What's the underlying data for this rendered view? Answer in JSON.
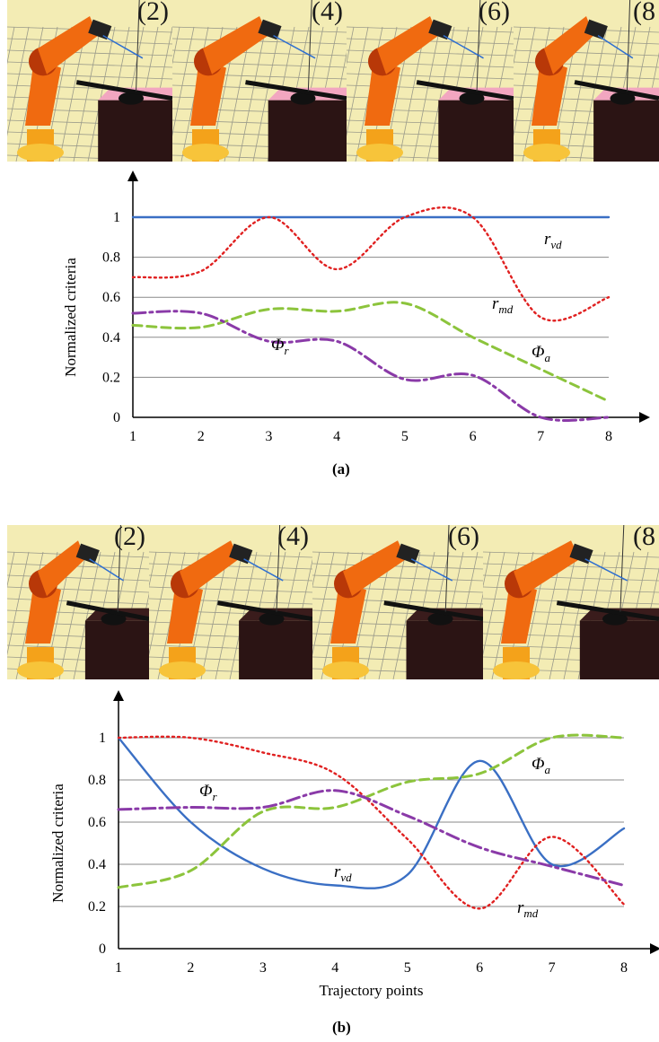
{
  "figure": {
    "panel_a_label": "(a)",
    "panel_b_label": "(b)"
  },
  "strip_a": {
    "frames": [
      "(2)",
      "(4)",
      "(6)",
      "(8"
    ]
  },
  "strip_b": {
    "frames": [
      "(2)",
      "(4)",
      "(6)",
      "(8"
    ]
  },
  "colors": {
    "r_vd": "#3a6fc4",
    "r_md": "#e02020",
    "phi_a": "#8cc43c",
    "phi_r": "#8a3aa8",
    "grid": "#8a8a8a",
    "robot": "#f06a10",
    "robot_dark": "#b83808",
    "floor": "#f3ecb4",
    "table_top_a": "#f2a6c0",
    "table_body": "#2b1414"
  },
  "chart_data": [
    {
      "type": "line",
      "ylabel": "Normalized criteria",
      "xlabel": "",
      "x": [
        1,
        2,
        3,
        4,
        5,
        6,
        7,
        8
      ],
      "ylim": [
        0,
        1
      ],
      "yticks": [
        "0",
        "0.2",
        "0.4",
        "0.6",
        "0.8",
        "1"
      ],
      "xticks": [
        "1",
        "2",
        "3",
        "4",
        "5",
        "6",
        "7",
        "8"
      ],
      "grid": true,
      "series": [
        {
          "name": "r_vd",
          "label_main": "r",
          "label_sub": "vd",
          "style": "solid",
          "values": [
            1,
            1,
            1,
            1,
            1,
            1,
            1,
            1
          ]
        },
        {
          "name": "r_md",
          "label_main": "r",
          "label_sub": "md",
          "style": "dotted",
          "values": [
            0.7,
            0.73,
            1.0,
            0.74,
            1.0,
            1.0,
            0.5,
            0.6
          ]
        },
        {
          "name": "Φa",
          "label_main": "Φ",
          "label_sub": "a",
          "style": "dashed",
          "values": [
            0.46,
            0.45,
            0.54,
            0.53,
            0.57,
            0.4,
            0.24,
            0.08
          ]
        },
        {
          "name": "Φr",
          "label_main": "Φ",
          "label_sub": "r",
          "style": "dashdot",
          "values": [
            0.52,
            0.52,
            0.38,
            0.38,
            0.19,
            0.21,
            0.0,
            0.0
          ]
        }
      ]
    },
    {
      "type": "line",
      "ylabel": "Normalized criteria",
      "xlabel": "Trajectory points",
      "x": [
        1,
        2,
        3,
        4,
        5,
        6,
        7,
        8
      ],
      "ylim": [
        0,
        1
      ],
      "yticks": [
        "0",
        "0.2",
        "0.4",
        "0.6",
        "0.8",
        "1"
      ],
      "xticks": [
        "1",
        "2",
        "3",
        "4",
        "5",
        "6",
        "7",
        "8"
      ],
      "grid": true,
      "series": [
        {
          "name": "r_vd",
          "label_main": "r",
          "label_sub": "vd",
          "style": "solid",
          "values": [
            1.0,
            0.6,
            0.38,
            0.3,
            0.35,
            0.89,
            0.4,
            0.57
          ]
        },
        {
          "name": "r_md",
          "label_main": "r",
          "label_sub": "md",
          "style": "dotted",
          "values": [
            1.0,
            1.0,
            0.93,
            0.83,
            0.52,
            0.19,
            0.53,
            0.21
          ]
        },
        {
          "name": "Φa",
          "label_main": "Φ",
          "label_sub": "a",
          "style": "dashed",
          "values": [
            0.29,
            0.37,
            0.65,
            0.67,
            0.79,
            0.83,
            1.0,
            1.0
          ]
        },
        {
          "name": "Φr",
          "label_main": "Φ",
          "label_sub": "r",
          "style": "dashdot",
          "values": [
            0.66,
            0.67,
            0.67,
            0.75,
            0.63,
            0.48,
            0.39,
            0.3
          ]
        }
      ]
    }
  ]
}
